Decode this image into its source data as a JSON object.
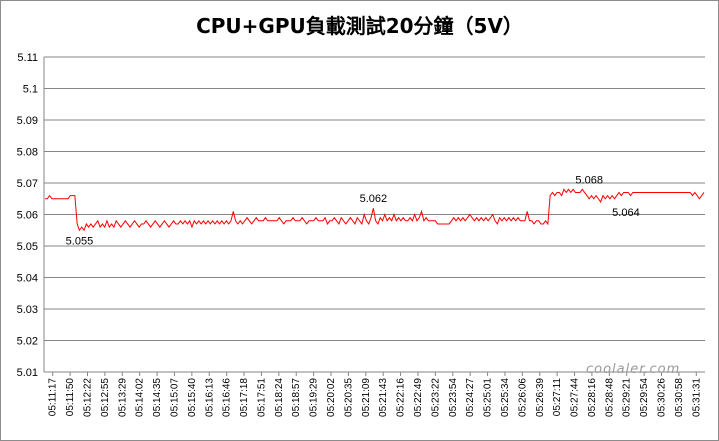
{
  "chart_data": {
    "type": "line",
    "title": "CPU+GPU負載測試20分鐘（5V）",
    "xlabel": "",
    "ylabel": "",
    "ylim": [
      5.01,
      5.11
    ],
    "yticks": [
      "5.11",
      "5.1",
      "5.09",
      "5.08",
      "5.07",
      "5.06",
      "5.05",
      "5.04",
      "5.03",
      "5.02",
      "5.01"
    ],
    "grid": "horizontal",
    "legend": "none",
    "line_color": "#ff0000",
    "x_tick_labels": [
      "05:11:17",
      "05:11:50",
      "05:12:22",
      "05:12:55",
      "05:13:29",
      "05:14:02",
      "05:14:35",
      "05:15:07",
      "05:15:40",
      "05:16:13",
      "05:16:46",
      "05:17:18",
      "05:17:51",
      "05:18:24",
      "05:18:57",
      "05:19:29",
      "05:20:02",
      "05:20:35",
      "05:21:09",
      "05:21:43",
      "05:22:16",
      "05:22:49",
      "05:23:22",
      "05:23:54",
      "05:24:27",
      "05:25:01",
      "05:25:34",
      "05:26:06",
      "05:26:39",
      "05:27:11",
      "05:27:44",
      "05:28:16",
      "05:28:48",
      "05:29:21",
      "05:29:54",
      "05:30:26",
      "05:30:58",
      "05:31:31"
    ],
    "series": [
      {
        "values": [
          5.065,
          5.065,
          5.066,
          5.065,
          5.065,
          5.065,
          5.065,
          5.065,
          5.065,
          5.065,
          5.065,
          5.066,
          5.066,
          5.066,
          5.057,
          5.055,
          5.056,
          5.055,
          5.057,
          5.056,
          5.057,
          5.056,
          5.057,
          5.058,
          5.056,
          5.057,
          5.056,
          5.058,
          5.056,
          5.057,
          5.056,
          5.058,
          5.057,
          5.056,
          5.057,
          5.058,
          5.057,
          5.056,
          5.057,
          5.058,
          5.057,
          5.056,
          5.057,
          5.057,
          5.058,
          5.057,
          5.056,
          5.057,
          5.058,
          5.057,
          5.056,
          5.057,
          5.058,
          5.057,
          5.056,
          5.057,
          5.058,
          5.057,
          5.057,
          5.058,
          5.057,
          5.058,
          5.057,
          5.058,
          5.056,
          5.058,
          5.057,
          5.058,
          5.057,
          5.058,
          5.057,
          5.058,
          5.057,
          5.058,
          5.057,
          5.058,
          5.057,
          5.058,
          5.057,
          5.058,
          5.057,
          5.058,
          5.061,
          5.058,
          5.057,
          5.058,
          5.057,
          5.058,
          5.059,
          5.058,
          5.057,
          5.058,
          5.059,
          5.058,
          5.058,
          5.058,
          5.059,
          5.058,
          5.058,
          5.058,
          5.058,
          5.058,
          5.059,
          5.058,
          5.057,
          5.058,
          5.058,
          5.058,
          5.059,
          5.058,
          5.058,
          5.058,
          5.059,
          5.058,
          5.057,
          5.058,
          5.058,
          5.058,
          5.059,
          5.058,
          5.058,
          5.058,
          5.059,
          5.057,
          5.058,
          5.058,
          5.059,
          5.058,
          5.057,
          5.059,
          5.058,
          5.057,
          5.058,
          5.059,
          5.058,
          5.057,
          5.059,
          5.058,
          5.057,
          5.06,
          5.058,
          5.057,
          5.059,
          5.062,
          5.058,
          5.057,
          5.059,
          5.058,
          5.06,
          5.058,
          5.059,
          5.058,
          5.06,
          5.058,
          5.059,
          5.058,
          5.059,
          5.058,
          5.058,
          5.059,
          5.058,
          5.06,
          5.058,
          5.059,
          5.061,
          5.058,
          5.059,
          5.058,
          5.058,
          5.058,
          5.058,
          5.057,
          5.057,
          5.057,
          5.057,
          5.057,
          5.057,
          5.058,
          5.059,
          5.058,
          5.059,
          5.058,
          5.059,
          5.058,
          5.059,
          5.06,
          5.059,
          5.058,
          5.059,
          5.058,
          5.059,
          5.058,
          5.059,
          5.058,
          5.059,
          5.06,
          5.058,
          5.057,
          5.059,
          5.058,
          5.059,
          5.058,
          5.059,
          5.058,
          5.059,
          5.058,
          5.059,
          5.058,
          5.058,
          5.058,
          5.061,
          5.058,
          5.058,
          5.057,
          5.058,
          5.058,
          5.057,
          5.057,
          5.058,
          5.057,
          5.066,
          5.067,
          5.066,
          5.067,
          5.067,
          5.066,
          5.068,
          5.067,
          5.068,
          5.067,
          5.068,
          5.067,
          5.067,
          5.067,
          5.068,
          5.067,
          5.066,
          5.065,
          5.066,
          5.065,
          5.066,
          5.065,
          5.064,
          5.066,
          5.065,
          5.066,
          5.065,
          5.066,
          5.065,
          5.066,
          5.067,
          5.066,
          5.067,
          5.067,
          5.067,
          5.066,
          5.067,
          5.067,
          5.067,
          5.067,
          5.067,
          5.067,
          5.067,
          5.067,
          5.067,
          5.067,
          5.067,
          5.067,
          5.067,
          5.067,
          5.067,
          5.067,
          5.067,
          5.067,
          5.067,
          5.067,
          5.067,
          5.067,
          5.067,
          5.067,
          5.067,
          5.067,
          5.066,
          5.067,
          5.066,
          5.065,
          5.066,
          5.067
        ]
      }
    ],
    "annotations": [
      {
        "text": "5.055",
        "index": 15,
        "value": 5.055,
        "position": "below"
      },
      {
        "text": "5.062",
        "index": 143,
        "value": 5.062,
        "position": "above"
      },
      {
        "text": "5.068",
        "index": 237,
        "value": 5.068,
        "position": "above"
      },
      {
        "text": "5.064",
        "index": 253,
        "value": 5.064,
        "position": "below"
      }
    ]
  },
  "watermark": "coolaler.com"
}
